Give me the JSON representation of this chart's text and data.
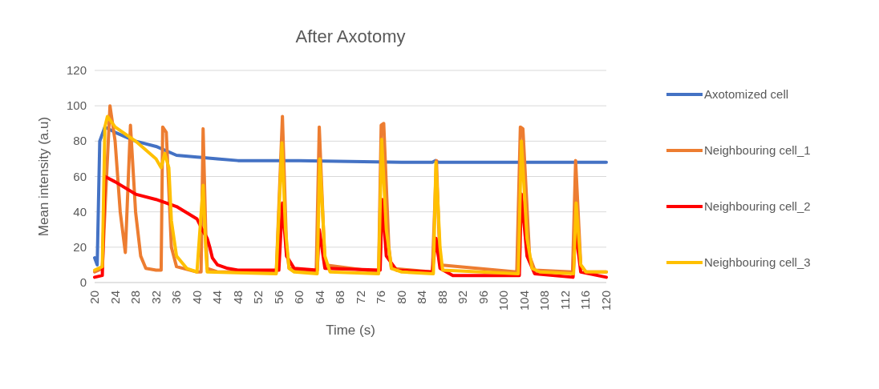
{
  "chart_data": {
    "type": "line",
    "title": "After Axotomy",
    "xlabel": "Time (s)",
    "ylabel": "Mean intensity (a.u)",
    "xlim": [
      20,
      120
    ],
    "xticks": [
      20,
      24,
      28,
      32,
      36,
      40,
      44,
      48,
      52,
      56,
      60,
      64,
      68,
      72,
      76,
      80,
      84,
      88,
      92,
      96,
      100,
      104,
      108,
      112,
      116,
      120
    ],
    "ylim": [
      0,
      120
    ],
    "yticks": [
      0,
      20,
      40,
      60,
      80,
      100,
      120
    ],
    "grid": "y",
    "legend": "right",
    "marker": "none",
    "line_style": "solid",
    "series": [
      {
        "name": "Axotomized cell",
        "color": "#4472c4",
        "x": [
          20,
          20.5,
          21,
          22,
          24,
          28,
          32,
          36,
          40,
          44,
          48,
          60,
          80,
          86,
          86.6,
          87.2,
          100,
          120
        ],
        "values": [
          14,
          10,
          80,
          88,
          85,
          80,
          77,
          72,
          71,
          70,
          69,
          69,
          68,
          68,
          69,
          68,
          68,
          68
        ]
      },
      {
        "name": "Neighbouring cell_1",
        "color": "#ed7d31",
        "x": [
          20,
          21.5,
          22,
          23,
          24,
          25,
          26,
          27,
          28,
          29,
          30,
          32,
          33,
          33.3,
          34,
          35,
          36,
          40,
          40.8,
          41.2,
          41.7,
          42,
          44,
          55.5,
          56.7,
          57.5,
          58,
          63.3,
          63.9,
          65,
          75.5,
          76,
          76.5,
          77.5,
          78,
          86,
          86.8,
          87.5,
          102.5,
          103.2,
          103.7,
          105,
          106,
          113.4,
          114,
          115,
          116,
          120
        ],
        "values": [
          6,
          8,
          40,
          100,
          80,
          40,
          17,
          89,
          40,
          15,
          8,
          7,
          7,
          88,
          85,
          20,
          9,
          6,
          6,
          87,
          30,
          8,
          6,
          6,
          94,
          20,
          8,
          6,
          88,
          10,
          6,
          89,
          90,
          20,
          8,
          6,
          69,
          10,
          6,
          88,
          87,
          15,
          7,
          6,
          69,
          10,
          6,
          6
        ]
      },
      {
        "name": "Neighbouring cell_2",
        "color": "#ff0000",
        "x": [
          20,
          21.5,
          22,
          24,
          28,
          32,
          36,
          40,
          41,
          42,
          42.5,
          43,
          44,
          46,
          48,
          56,
          56.7,
          57.5,
          59,
          63.5,
          63.9,
          65,
          75.8,
          76.2,
          77,
          79,
          86,
          86.7,
          87.5,
          90,
          103,
          103.4,
          104.5,
          106,
          113.5,
          114,
          115,
          120
        ],
        "values": [
          3,
          4,
          60,
          57,
          50,
          47,
          43,
          36,
          30,
          25,
          20,
          14,
          10,
          8,
          7,
          7,
          45,
          15,
          8,
          7,
          30,
          8,
          7,
          47,
          15,
          7,
          6,
          25,
          8,
          4,
          4,
          50,
          15,
          5,
          3,
          30,
          6,
          3
        ]
      },
      {
        "name": "Neighbouring cell_3",
        "color": "#ffc000",
        "x": [
          20,
          21.5,
          22,
          22.5,
          24,
          28,
          32,
          33,
          33.7,
          34.5,
          35,
          36,
          38,
          40,
          41.2,
          41.7,
          42,
          55.5,
          56.6,
          57.3,
          58,
          59,
          63.5,
          64,
          65,
          66,
          75.5,
          76.1,
          77,
          78,
          80,
          86.2,
          86.7,
          87.5,
          88,
          102.8,
          103.4,
          104.5,
          105.5,
          107,
          113.6,
          114.1,
          115,
          116,
          120
        ],
        "values": [
          7,
          9,
          88,
          94,
          88,
          80,
          70,
          65,
          73,
          65,
          35,
          15,
          8,
          6,
          55,
          20,
          6,
          5,
          79,
          30,
          8,
          6,
          5,
          70,
          15,
          6,
          5,
          81,
          30,
          8,
          6,
          5,
          68,
          20,
          7,
          5,
          80,
          25,
          8,
          6,
          5,
          45,
          10,
          6,
          6
        ]
      }
    ]
  }
}
